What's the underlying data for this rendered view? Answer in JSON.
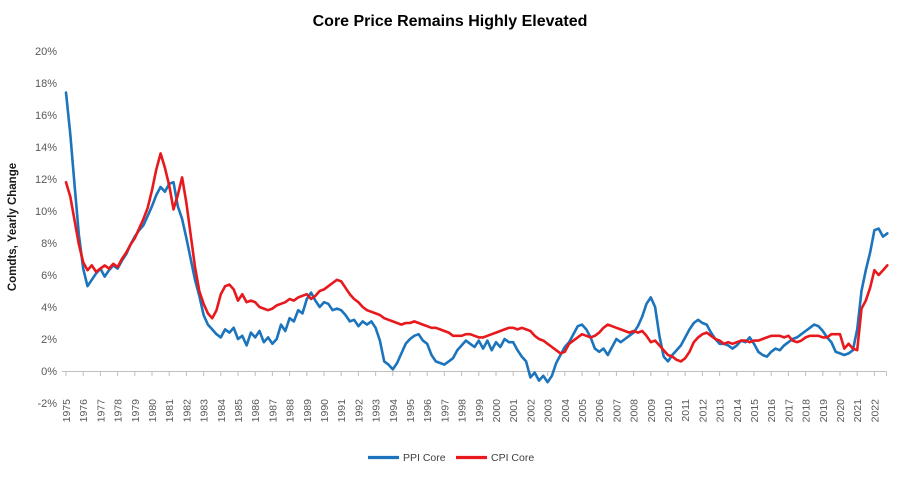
{
  "chart_data": {
    "type": "line",
    "title": "Core Price Remains Highly Elevated",
    "xlabel": "",
    "ylabel": "Comdts, Yearly Change",
    "ylim": [
      -2,
      20
    ],
    "y_tick_step": 2,
    "y_tick_labels": [
      "20%",
      "18%",
      "16%",
      "14%",
      "12%",
      "10%",
      "8%",
      "6%",
      "4%",
      "2%",
      "0%",
      "-2%"
    ],
    "x_tick_labels": [
      "1975",
      "1976",
      "1977",
      "1978",
      "1979",
      "1980",
      "1981",
      "1982",
      "1983",
      "1984",
      "1985",
      "1986",
      "1987",
      "1988",
      "1989",
      "1990",
      "1991",
      "1992",
      "1993",
      "1994",
      "1995",
      "1996",
      "1997",
      "1998",
      "1999",
      "2000",
      "2001",
      "2002",
      "2003",
      "2004",
      "2005",
      "2006",
      "2007",
      "2008",
      "2009",
      "2010",
      "2011",
      "2012",
      "2013",
      "2014",
      "2015",
      "2016",
      "2017",
      "2018",
      "2019",
      "2020",
      "2021",
      "2022"
    ],
    "x_start": 1975.0,
    "x_step": 0.25,
    "x_end": 2022.75,
    "grid": "none",
    "legend_position": "bottom",
    "axis_color": "#BFBFBF",
    "tick_label_color": "#595959",
    "series": [
      {
        "name": "PPI Core",
        "color": "#1B74BC",
        "values": [
          17.4,
          14.8,
          11.6,
          8.5,
          6.4,
          5.3,
          5.7,
          6.1,
          6.4,
          5.9,
          6.3,
          6.6,
          6.4,
          6.9,
          7.3,
          7.9,
          8.4,
          8.8,
          9.1,
          9.7,
          10.3,
          11.0,
          11.5,
          11.2,
          11.7,
          11.8,
          10.3,
          9.5,
          8.3,
          7.0,
          5.7,
          4.7,
          3.5,
          2.9,
          2.6,
          2.3,
          2.1,
          2.6,
          2.4,
          2.7,
          2.0,
          2.2,
          1.6,
          2.4,
          2.1,
          2.5,
          1.8,
          2.1,
          1.7,
          2.0,
          2.9,
          2.5,
          3.3,
          3.1,
          3.8,
          3.6,
          4.5,
          4.9,
          4.4,
          4.0,
          4.3,
          4.2,
          3.8,
          3.9,
          3.8,
          3.5,
          3.1,
          3.2,
          2.8,
          3.1,
          2.9,
          3.1,
          2.7,
          1.9,
          0.6,
          0.4,
          0.1,
          0.5,
          1.1,
          1.7,
          2.0,
          2.2,
          2.3,
          1.9,
          1.7,
          1.0,
          0.6,
          0.5,
          0.4,
          0.6,
          0.8,
          1.3,
          1.6,
          1.9,
          1.7,
          1.5,
          1.9,
          1.4,
          1.9,
          1.3,
          1.8,
          1.5,
          2.0,
          1.8,
          1.8,
          1.3,
          0.9,
          0.6,
          -0.4,
          -0.1,
          -0.6,
          -0.3,
          -0.7,
          -0.3,
          0.5,
          1.0,
          1.5,
          1.8,
          2.3,
          2.8,
          2.9,
          2.6,
          2.1,
          1.4,
          1.2,
          1.4,
          1.0,
          1.5,
          2.0,
          1.8,
          2.0,
          2.2,
          2.4,
          2.8,
          3.4,
          4.2,
          4.6,
          4.0,
          2.2,
          0.9,
          0.6,
          1.0,
          1.3,
          1.6,
          2.1,
          2.6,
          3.0,
          3.2,
          3.0,
          2.9,
          2.4,
          2.0,
          1.7,
          1.7,
          1.6,
          1.4,
          1.6,
          1.9,
          1.8,
          2.1,
          1.7,
          1.2,
          1.0,
          0.9,
          1.2,
          1.4,
          1.3,
          1.6,
          1.8,
          2.0,
          2.1,
          2.3,
          2.5,
          2.7,
          2.9,
          2.8,
          2.5,
          2.1,
          1.8,
          1.2,
          1.1,
          1.0,
          1.1,
          1.3,
          2.6,
          5.0,
          6.3,
          7.4,
          8.8,
          8.9,
          8.4,
          8.6
        ]
      },
      {
        "name": "CPI Core",
        "color": "#E8191C",
        "values": [
          11.8,
          10.9,
          9.4,
          7.9,
          6.8,
          6.3,
          6.6,
          6.2,
          6.4,
          6.6,
          6.4,
          6.7,
          6.5,
          7.0,
          7.4,
          7.9,
          8.3,
          8.9,
          9.5,
          10.2,
          11.3,
          12.6,
          13.6,
          12.7,
          11.6,
          10.1,
          11.0,
          12.1,
          10.5,
          8.5,
          6.5,
          5.0,
          4.2,
          3.6,
          3.3,
          3.8,
          4.8,
          5.3,
          5.4,
          5.1,
          4.4,
          4.8,
          4.3,
          4.4,
          4.3,
          4.0,
          3.9,
          3.8,
          3.9,
          4.1,
          4.2,
          4.3,
          4.5,
          4.4,
          4.6,
          4.7,
          4.8,
          4.5,
          4.7,
          5.0,
          5.1,
          5.3,
          5.5,
          5.7,
          5.6,
          5.2,
          4.8,
          4.5,
          4.3,
          4.0,
          3.8,
          3.7,
          3.6,
          3.5,
          3.3,
          3.2,
          3.1,
          3.0,
          2.9,
          3.0,
          3.0,
          3.1,
          3.0,
          2.9,
          2.8,
          2.7,
          2.7,
          2.6,
          2.5,
          2.4,
          2.2,
          2.2,
          2.2,
          2.3,
          2.3,
          2.2,
          2.1,
          2.1,
          2.2,
          2.3,
          2.4,
          2.5,
          2.6,
          2.7,
          2.7,
          2.6,
          2.7,
          2.6,
          2.5,
          2.2,
          2.0,
          1.9,
          1.7,
          1.5,
          1.3,
          1.1,
          1.2,
          1.7,
          1.9,
          2.1,
          2.3,
          2.2,
          2.1,
          2.2,
          2.4,
          2.7,
          2.9,
          2.8,
          2.7,
          2.6,
          2.5,
          2.4,
          2.5,
          2.4,
          2.5,
          2.2,
          1.8,
          1.9,
          1.6,
          1.3,
          1.0,
          0.9,
          0.7,
          0.6,
          0.8,
          1.2,
          1.8,
          2.1,
          2.3,
          2.4,
          2.2,
          2.0,
          1.9,
          1.7,
          1.8,
          1.7,
          1.8,
          1.9,
          1.9,
          1.8,
          1.9,
          1.9,
          2.0,
          2.1,
          2.2,
          2.2,
          2.2,
          2.1,
          2.2,
          1.9,
          1.8,
          1.9,
          2.1,
          2.2,
          2.2,
          2.2,
          2.1,
          2.1,
          2.3,
          2.3,
          2.3,
          1.4,
          1.7,
          1.4,
          1.3,
          3.9,
          4.4,
          5.2,
          6.3,
          6.0,
          6.3,
          6.6
        ]
      }
    ]
  }
}
